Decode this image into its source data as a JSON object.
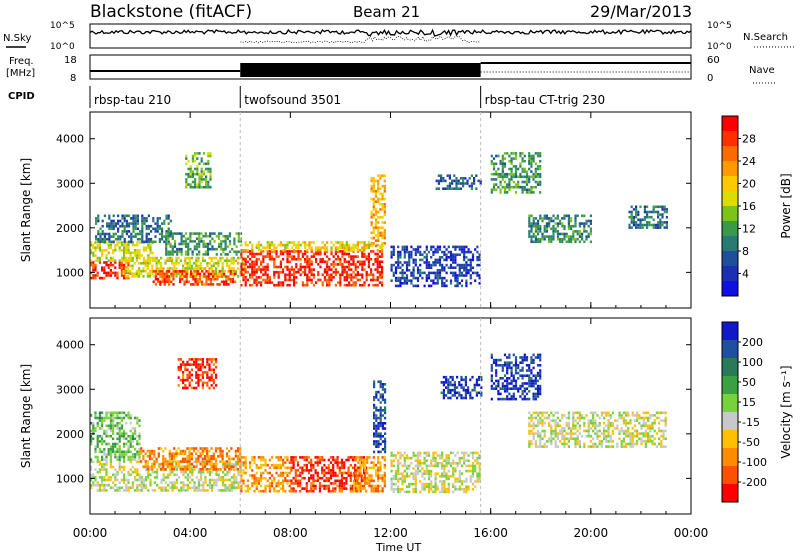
{
  "header": {
    "station": "Blackstone (fitACF)",
    "beam": "Beam 21",
    "date": "29/Mar/2013"
  },
  "strip_labels": {
    "nsky": "N.Sky",
    "nsearch": "N.Search",
    "freq": "Freq.",
    "freq_unit": "[MHz]",
    "nave": "Nave",
    "cpid": "CPID",
    "nsky_ticks": [
      "10^5",
      "10^0"
    ],
    "nsearch_ticks": [
      "10^5",
      "10^0"
    ],
    "freq_ticks": [
      "18",
      "8"
    ],
    "nave_ticks": [
      "60",
      "0"
    ]
  },
  "cpid_segments": [
    {
      "label": "rbsp-tau 210",
      "start_hour": 0
    },
    {
      "label": "twofsound 3501",
      "start_hour": 6
    },
    {
      "label": "rbsp-tau CT-trig 230",
      "start_hour": 15.6
    }
  ],
  "chart_data": [
    {
      "type": "heatmap",
      "title": "",
      "xlabel": "Time UT",
      "ylabel": "Slant Range [km]",
      "xlim": [
        0,
        24
      ],
      "ylim": [
        200,
        4600
      ],
      "x_ticks": [
        "00:00",
        "04:00",
        "08:00",
        "12:00",
        "16:00",
        "20:00",
        "00:00"
      ],
      "y_ticks": [
        "1000",
        "2000",
        "3000",
        "4000"
      ],
      "colorbar": {
        "label": "Power [dB]",
        "ticks": [
          "28",
          "24",
          "20",
          "16",
          "12",
          "8",
          "4"
        ],
        "colors": [
          "#ff0000",
          "#ff3000",
          "#ff6a00",
          "#ff9a00",
          "#ffc800",
          "#dcdc00",
          "#7cc31b",
          "#3a9a4a",
          "#2a7a74",
          "#1f4f9a",
          "#1a2fb4",
          "#1010e0"
        ]
      },
      "regions": [
        {
          "t0": 0.0,
          "t1": 1.5,
          "r0": 850,
          "r1": 1250,
          "level": 0.92
        },
        {
          "t0": 0.0,
          "t1": 2.5,
          "r0": 1250,
          "r1": 1700,
          "level": 0.55
        },
        {
          "t0": 0.2,
          "t1": 3.2,
          "r0": 1700,
          "r1": 2300,
          "level": 0.25
        },
        {
          "t0": 1.3,
          "t1": 6.2,
          "r0": 900,
          "r1": 1350,
          "level": 0.55
        },
        {
          "t0": 2.5,
          "t1": 5.8,
          "r0": 700,
          "r1": 1050,
          "level": 0.88
        },
        {
          "t0": 3.0,
          "t1": 6.0,
          "r0": 1400,
          "r1": 1900,
          "level": 0.35
        },
        {
          "t0": 3.8,
          "t1": 4.8,
          "r0": 2900,
          "r1": 3700,
          "level": 0.4
        },
        {
          "t0": 6.0,
          "t1": 11.7,
          "r0": 700,
          "r1": 1500,
          "level": 0.95
        },
        {
          "t0": 6.0,
          "t1": 11.7,
          "r0": 1500,
          "r1": 1700,
          "level": 0.6
        },
        {
          "t0": 11.2,
          "t1": 11.8,
          "r0": 1600,
          "r1": 3200,
          "level": 0.7
        },
        {
          "t0": 12.0,
          "t1": 15.6,
          "r0": 700,
          "r1": 1600,
          "level": 0.12
        },
        {
          "t0": 13.8,
          "t1": 15.6,
          "r0": 2900,
          "r1": 3200,
          "level": 0.2
        },
        {
          "t0": 16.0,
          "t1": 18.0,
          "r0": 2800,
          "r1": 3700,
          "level": 0.35
        },
        {
          "t0": 17.5,
          "t1": 20.0,
          "r0": 1700,
          "r1": 2300,
          "level": 0.3
        },
        {
          "t0": 21.5,
          "t1": 23.0,
          "r0": 2000,
          "r1": 2500,
          "level": 0.25
        }
      ]
    },
    {
      "type": "heatmap",
      "title": "",
      "xlabel": "Time UT",
      "ylabel": "Slant Range [km]",
      "xlim": [
        0,
        24
      ],
      "ylim": [
        200,
        4600
      ],
      "x_ticks": [
        "00:00",
        "04:00",
        "08:00",
        "12:00",
        "16:00",
        "20:00",
        "00:00"
      ],
      "y_ticks": [
        "1000",
        "2000",
        "3000",
        "4000"
      ],
      "colorbar": {
        "label": "Velocity [m s⁻¹]",
        "ticks": [
          "200",
          "100",
          "50",
          "15",
          "-15",
          "-50",
          "-100",
          "-200"
        ],
        "colors": [
          "#1018c8",
          "#1f4fa0",
          "#2a7a5a",
          "#3aa040",
          "#78d23c",
          "#c8c8c8",
          "#ffc000",
          "#ff8c00",
          "#ff5000",
          "#ff0000"
        ]
      },
      "regions": [
        {
          "t0": 0.0,
          "t1": 6.0,
          "r0": 700,
          "r1": 1400,
          "level": 0.45
        },
        {
          "t0": 0.0,
          "t1": 2.0,
          "r0": 1400,
          "r1": 2500,
          "level": 0.6
        },
        {
          "t0": 2.0,
          "t1": 6.0,
          "r0": 1200,
          "r1": 1700,
          "level": 0.2
        },
        {
          "t0": 3.5,
          "t1": 5.0,
          "r0": 3000,
          "r1": 3700,
          "level": 0.05
        },
        {
          "t0": 6.0,
          "t1": 8.0,
          "r0": 700,
          "r1": 1500,
          "level": 0.25
        },
        {
          "t0": 8.0,
          "t1": 11.0,
          "r0": 700,
          "r1": 1500,
          "level": 0.05
        },
        {
          "t0": 10.5,
          "t1": 11.8,
          "r0": 700,
          "r1": 1500,
          "level": 0.25
        },
        {
          "t0": 11.3,
          "t1": 11.8,
          "r0": 1600,
          "r1": 3200,
          "level": 0.9
        },
        {
          "t0": 12.0,
          "t1": 15.6,
          "r0": 700,
          "r1": 1600,
          "level": 0.45
        },
        {
          "t0": 14.0,
          "t1": 15.6,
          "r0": 2800,
          "r1": 3300,
          "level": 0.95
        },
        {
          "t0": 16.0,
          "t1": 18.0,
          "r0": 2800,
          "r1": 3800,
          "level": 0.95
        },
        {
          "t0": 17.5,
          "t1": 23.0,
          "r0": 1700,
          "r1": 2500,
          "level": 0.45
        }
      ]
    }
  ]
}
